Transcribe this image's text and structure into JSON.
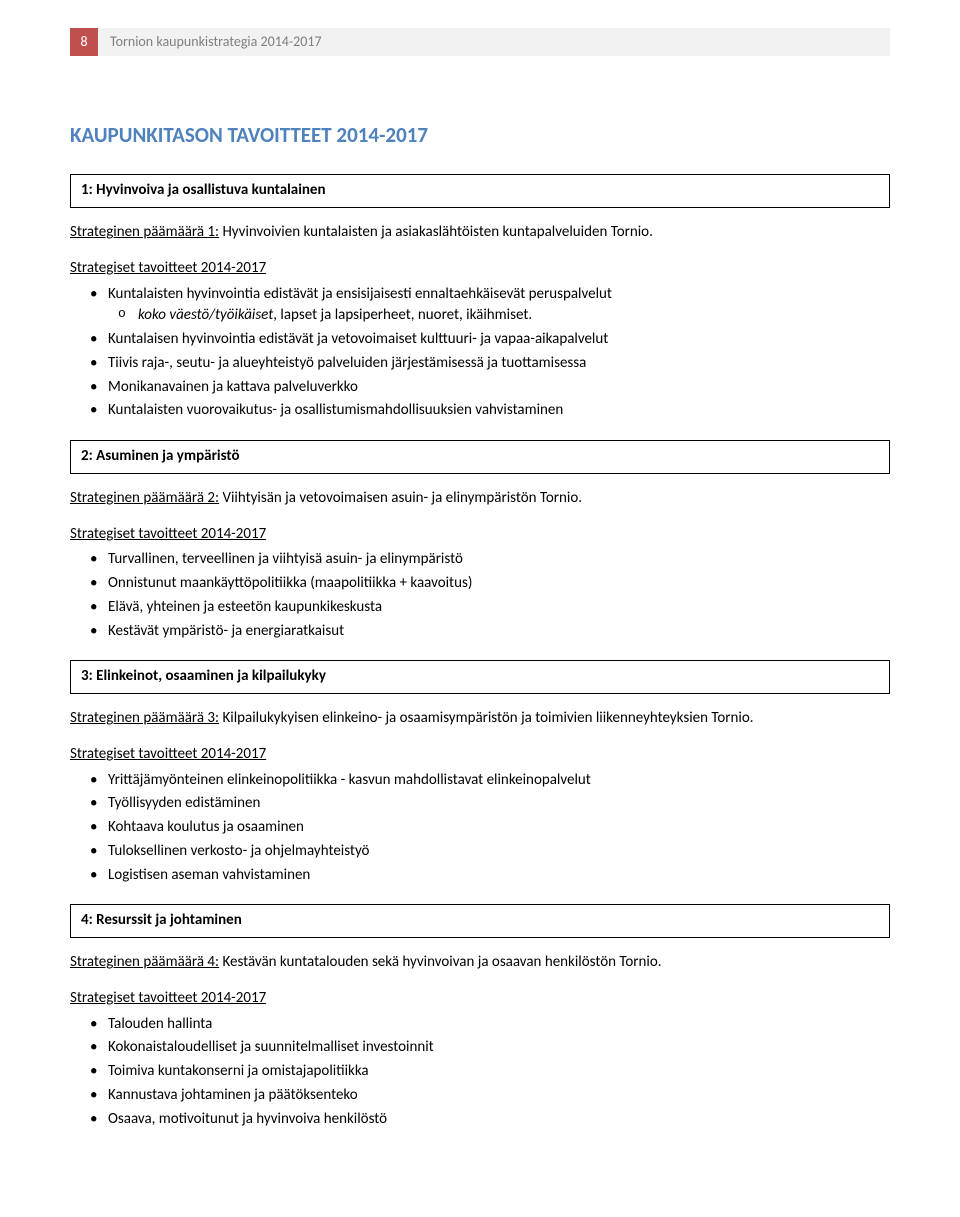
{
  "header": {
    "page_number": "8",
    "doc_title": "Tornion kaupunkistrategia 2014-2017"
  },
  "main_heading": "KAUPUNKITASON TAVOITTEET 2014-2017",
  "sections": [
    {
      "box_title": "1: Hyvinvoiva ja osallistuva kuntalainen",
      "goal_prefix": "Strateginen päämäärä 1:",
      "goal_text": " Hyvinvoivien kuntalaisten ja asiakaslähtöisten kuntapalveluiden Tornio.",
      "list_heading": "Strategiset tavoitteet 2014-2017",
      "bullets": [
        {
          "text": "Kuntalaisten hyvinvointia edistävät ja ensisijaisesti ennaltaehkäisevät peruspalvelut",
          "sub": [
            {
              "text_pre": "koko väestö/työikäiset, lapset ja lapsiperheet, nuoret, ikäihmiset.",
              "italic_part": "koko väestö/työikäiset"
            }
          ],
          "sub_raw": "koko väestö/työikäiset, lapset ja lapsiperheet, nuoret, ikäihmiset."
        },
        {
          "text": "Kuntalaisen hyvinvointia edistävät ja vetovoimaiset kulttuuri- ja vapaa-aikapalvelut"
        },
        {
          "text": "Tiivis raja-, seutu- ja alueyhteistyö palveluiden järjestämisessä ja tuottamisessa"
        },
        {
          "text": "Monikanavainen ja kattava palveluverkko"
        },
        {
          "text": "Kuntalaisten vuorovaikutus- ja osallistumismahdollisuuksien vahvistaminen"
        }
      ]
    },
    {
      "box_title": "2: Asuminen ja ympäristö",
      "goal_prefix": "Strateginen päämäärä 2:",
      "goal_text": " Viihtyisän ja vetovoimaisen asuin- ja elinympäristön Tornio.",
      "list_heading": "Strategiset tavoitteet 2014-2017",
      "bullets": [
        {
          "text": "Turvallinen, terveellinen ja viihtyisä asuin- ja elinympäristö"
        },
        {
          "text": "Onnistunut maankäyttöpolitiikka (maapolitiikka + kaavoitus)"
        },
        {
          "text": "Elävä, yhteinen ja esteetön kaupunkikeskusta"
        },
        {
          "text": "Kestävät ympäristö- ja energiaratkaisut"
        }
      ]
    },
    {
      "box_title": "3: Elinkeinot, osaaminen ja kilpailukyky",
      "goal_prefix": "Strateginen päämäärä 3:",
      "goal_text": " Kilpailukykyisen elinkeino- ja osaamisympäristön ja toimivien liikenneyhteyksien Tornio.",
      "list_heading": "Strategiset tavoitteet 2014-2017",
      "bullets": [
        {
          "text": "Yrittäjämyönteinen elinkeinopolitiikka - kasvun mahdollistavat elinkeinopalvelut"
        },
        {
          "text": "Työllisyyden edistäminen"
        },
        {
          "text": "Kohtaava koulutus ja osaaminen"
        },
        {
          "text": "Tuloksellinen verkosto- ja ohjelmayhteistyö"
        },
        {
          "text": "Logistisen aseman vahvistaminen"
        }
      ]
    },
    {
      "box_title": "4: Resurssit ja johtaminen",
      "goal_prefix": "Strateginen päämäärä 4:",
      "goal_text": " Kestävän kuntatalouden sekä hyvinvoivan ja osaavan henkilöstön Tornio.",
      "list_heading": "Strategiset tavoitteet 2014-2017",
      "bullets": [
        {
          "text": "Talouden hallinta"
        },
        {
          "text": "Kokonaistaloudelliset ja suunnitelmalliset investoinnit"
        },
        {
          "text": "Toimiva kuntakonserni ja omistajapolitiikka"
        },
        {
          "text": "Kannustava johtaminen ja päätöksenteko"
        },
        {
          "text": "Osaava, motivoitunut ja hyvinvoiva henkilöstö"
        }
      ]
    }
  ],
  "style": {
    "accent_color": "#4f81bd",
    "header_box_bg": "#c0504d",
    "header_strip_bg": "#f2f2f2",
    "header_strip_fg": "#7f7f7f",
    "body_fontsize": 15,
    "heading_fontsize": 21
  }
}
